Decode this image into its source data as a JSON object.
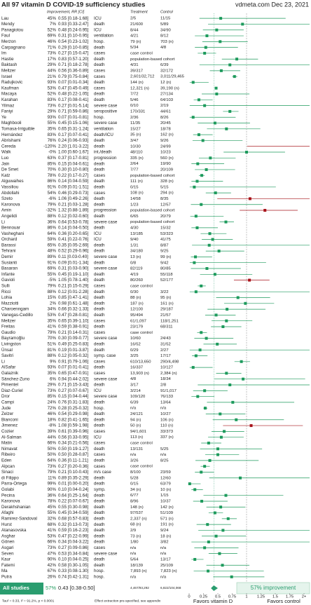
{
  "header": {
    "title": "All 97 vitamin D COVID-19 sufficiency studies",
    "source": "vdmeta.com Dec 23, 2021"
  },
  "columns": {
    "improvement": "Improvement, RR [CI]",
    "treatment": "Treatment",
    "control": "Control"
  },
  "chart_data": {
    "type": "forest",
    "rows": [
      [
        0.55,
        0.18,
        1.68,
        "Lau",
        "45%",
        "0.55 [0.18-1.68]",
        "ICU",
        "2/5",
        "11/15"
      ],
      [
        0.93,
        0.33,
        2.47,
        "Mendy",
        "7%",
        "0.93 [0.33-2.47]",
        "death",
        "21/600",
        "5/89"
      ],
      [
        0.48,
        0.24,
        0.95,
        "Panagiotou",
        "52%",
        "0.48 [0.24-0.95]",
        "ICU",
        "8/44",
        "34/90"
      ],
      [
        0.31,
        0.1,
        0.95,
        "Faul",
        "69%",
        "0.31 [0.10-0.95]",
        "ventilation",
        "4/21",
        "8/12"
      ],
      [
        0.54,
        0.23,
        1.02,
        "Merzon",
        "46%",
        "0.54 [0.23-1.02]",
        "hosp.",
        "79 (n)",
        "703 (n)"
      ],
      [
        0.29,
        0.1,
        0.85,
        "Carpagnano",
        "71%",
        "0.29 [0.10-0.85]",
        "death",
        "5/34",
        "4/8"
      ],
      [
        0.27,
        0.15,
        0.47,
        "Im",
        "73%",
        "0.27 [0.15-0.47]",
        "cases",
        "case control"
      ],
      [
        0.83,
        0.57,
        1.2,
        "Hastie",
        "17%",
        "0.83 [0.57-1.20]",
        "death",
        "population-based cohort"
      ],
      [
        0.71,
        0.18,
        2.78,
        "Baktash",
        "29%",
        "0.71 [0.18-2.78]",
        "death",
        "4/31",
        "6/39"
      ],
      [
        0.56,
        0.36,
        0.89,
        "Meltzer",
        "44%",
        "0.56 [0.36-0.89]",
        "cases",
        "39/317",
        "32/172"
      ],
      [
        0.79,
        0.75,
        0.84,
        "Israel",
        "21%",
        "0.79 [0.75-0.84]",
        "cases",
        "2,601/32,712",
        "3,011/29,465"
      ],
      [
        0.07,
        0.01,
        0.34,
        "Radujkovic",
        "93%",
        "0.07 [0.01-0.34]",
        "death",
        "144 (n)",
        "12 (n)"
      ],
      [
        0.47,
        0.45,
        0.49,
        "Kaufman",
        "53%",
        "0.47 [0.45-0.49]",
        "cases",
        "12,321 (n)",
        "39,190 (n)"
      ],
      [
        0.48,
        0.22,
        1.05,
        "Macaya",
        "52%",
        "0.48 [0.22-1.05]",
        "death",
        "7/72",
        "27/134"
      ],
      [
        0.17,
        0.08,
        0.41,
        "Karahan",
        "83%",
        "0.17 [0.08-0.41]",
        "death",
        "5/46",
        "64/103"
      ],
      [
        0.27,
        0.01,
        5.14,
        "Yilmaz",
        "73%",
        "0.27 [0.01-5.14]",
        "severe case",
        "0/10",
        "2/19"
      ],
      [
        0.71,
        0.59,
        0.86,
        "Faniyi",
        "29%",
        "0.71 [0.59-0.86]",
        "seropositive",
        "170/331",
        "44/61"
      ],
      [
        0.07,
        0.01,
        0.81,
        "Ye",
        "93%",
        "0.07 [0.01-0.81]",
        "hosp.",
        "2/36",
        "8/26"
      ],
      [
        0.45,
        0.15,
        1.06,
        "Maghbooli",
        "55%",
        "0.45 [0.15-1.06]",
        "severe case",
        "11/35",
        "20/45"
      ],
      [
        0.65,
        0.31,
        1.24,
        "Tomasa-Irriguible",
        "35%",
        "0.65 [0.31-1.24]",
        "ventilation",
        "15/27",
        "18/78"
      ],
      [
        0.17,
        0.07,
        0.41,
        "Hernández",
        "83%",
        "0.17 [0.07-0.41]",
        "death/ICU",
        "35 (n)",
        "162 (n)"
      ],
      [
        0.24,
        0.06,
        0.93,
        "Abrishami",
        "76%",
        "0.24 [0.06-0.93]",
        "death",
        "3/47",
        "9/26"
      ],
      [
        2.2,
        1.01,
        3.22,
        "Cereda",
        "-120%",
        "2.20 [1.01-3.22]",
        "death",
        "10/30",
        "24/99"
      ],
      [
        1.0,
        0.6,
        1.67,
        "Walk",
        "-0%",
        "1.00 [0.60-1.67]",
        "int./death",
        "48/110",
        "10/23"
      ],
      [
        0.37,
        0.17,
        0.81,
        "Luo",
        "63%",
        "0.37 [0.17-0.81]",
        "progression",
        "335 (n)",
        "560 (n)"
      ],
      [
        0.15,
        0.04,
        0.61,
        "Jain",
        "85%",
        "0.15 [0.04-0.61]",
        "death",
        "2/64",
        "19/90"
      ],
      [
        0.3,
        0.1,
        0.8,
        "De Smet",
        "70%",
        "0.30 [0.10-0.80]",
        "death",
        "7/77",
        "20/109"
      ],
      [
        0.22,
        0.17,
        0.27,
        "Katz",
        "78%",
        "0.22 [0.17-0.27]",
        "cases",
        "population-based cohort"
      ],
      [
        0.14,
        0.04,
        0.59,
        "Alguwaihes",
        "86%",
        "0.14 [0.04-0.59]",
        "death",
        "111 (n)",
        "328 (n)"
      ],
      [
        0.09,
        0.01,
        1.51,
        "Vassiliou",
        "91%",
        "0.09 [0.01-1.51]",
        "death",
        "0/15",
        "5/15"
      ],
      [
        0.46,
        0.29,
        0.73,
        "Abdollahi",
        "54%",
        "0.46 [0.29-0.73]",
        "cases",
        "108 (n)",
        "294 (n)"
      ],
      [
        1.06,
        0.49,
        2.26,
        "Szeto",
        "-6%",
        "1.06 [0.49-2.26]",
        "death",
        "14/58",
        "8/35"
      ],
      [
        0.21,
        0.03,
        1.28,
        "Karonova",
        "79%",
        "0.21 [0.03-1.28]",
        "death",
        "1/23",
        "12/57"
      ],
      [
        1.32,
        0.88,
        1.89,
        "Amin",
        "-32%",
        "1.32 [0.88-1.89]",
        "progression",
        "population-based cohort"
      ],
      [
        0.12,
        0.02,
        0.6,
        "Angelidi",
        "88%",
        "0.12 [0.02-0.60]",
        "death",
        "6/65",
        "20/79"
      ],
      [
        0.64,
        0.53,
        0.78,
        "Li",
        "36%",
        "0.64 [0.53-0.78]",
        "severe case",
        "population-based cohort"
      ],
      [
        0.14,
        0.04,
        0.5,
        "Bennouar",
        "86%",
        "0.14 [0.04-0.50]",
        "death",
        "4/30",
        "15/32"
      ],
      [
        0.36,
        0.2,
        0.65,
        "Vasheghani",
        "64%",
        "0.36 [0.20-0.65]",
        "ICU",
        "13/185",
        "53/323"
      ],
      [
        0.41,
        0.22,
        0.76,
        "Orchard",
        "59%",
        "0.41 [0.22-0.76]",
        "ICU",
        "9/40",
        "41/75"
      ],
      [
        0.35,
        0.05,
        2.69,
        "Barassi",
        "65%",
        "0.35 [0.05-2.69]",
        "death",
        "1/31",
        "8/87"
      ],
      [
        0.52,
        0.29,
        0.96,
        "Tehrani",
        "48%",
        "0.52 [0.29-0.96]",
        "death",
        "34/180",
        "9/25"
      ],
      [
        0.11,
        0.03,
        0.4,
        "Demir",
        "89%",
        "0.11 [0.03-0.40]",
        "severe case",
        "13 (n)",
        "99 (n)"
      ],
      [
        0.09,
        0.01,
        1.34,
        "Susianti",
        "91%",
        "0.09 [0.01-1.34]",
        "death",
        "0/8",
        "9/42"
      ],
      [
        0.31,
        0.03,
        0.9,
        "Basaran",
        "69%",
        "0.31 [0.03-0.90]",
        "severe case",
        "82/119",
        "80/85"
      ],
      [
        0.45,
        0.19,
        1.1,
        "Infante",
        "55%",
        "0.45 [0.19-1.10]",
        "death",
        "4/19",
        "55/118"
      ],
      [
        1.05,
        0.78,
        1.4,
        "Gavioli",
        "-5%",
        "1.05 [0.78-1.40]",
        "death",
        "80/260",
        "52/177"
      ],
      [
        0.21,
        0.15,
        0.29,
        "Sulli",
        "79%",
        "0.21 [0.15-0.29]",
        "cases",
        "case control"
      ],
      [
        0.12,
        0.01,
        2.28,
        "Ricci",
        "88%",
        "0.12 [0.01-2.28]",
        "death",
        "0/30",
        "3/22"
      ],
      [
        0.85,
        0.47,
        1.41,
        "Lohia",
        "15%",
        "0.85 [0.47-1.41]",
        "death",
        "88 (n)",
        "95 (n)"
      ],
      [
        0.98,
        0.61,
        1.48,
        "Mazziotti",
        "2%",
        "0.98 [0.61-1.48]",
        "death",
        "187 (n)",
        "161 (n)"
      ],
      [
        0.66,
        0.32,
        1.33,
        "Charoenngam",
        "34%",
        "0.66 [0.32-1.33]",
        "death",
        "12/100",
        "29/187"
      ],
      [
        0.47,
        0.28,
        0.81,
        "Vanegas-Cedillo",
        "53%",
        "0.47 [0.28-0.81]",
        "death",
        "95/494",
        "21/57"
      ],
      [
        0.65,
        0.39,
        1.1,
        "Meltzer",
        "35%",
        "0.65 [0.39-1.10]",
        "cases",
        "61/1,097",
        "118/1,251"
      ],
      [
        0.59,
        0.38,
        0.91,
        "Freitas",
        "41%",
        "0.59 [0.38-0.91]",
        "death",
        "23/179",
        "68/311"
      ],
      [
        0.21,
        0.14,
        0.31,
        "Gaudio",
        "79%",
        "0.21 [0.14-0.31]",
        "cases",
        "case control"
      ],
      [
        0.3,
        0.09,
        0.77,
        "Bayramoğlu",
        "70%",
        "0.30 [0.09-0.77]",
        "severe case",
        "10/60",
        "24/43"
      ],
      [
        0.49,
        0.25,
        0.83,
        "Livingston",
        "51%",
        "0.49 [0.25-0.83]",
        "death",
        "16/52",
        "31/52"
      ],
      [
        0.19,
        0.01,
        3.87,
        "Ünsal",
        "81%",
        "0.19 [0.01-3.87]",
        "death",
        "0/29",
        "2/27"
      ],
      [
        0.12,
        0.05,
        0.32,
        "Savitri",
        "88%",
        "0.12 [0.05-0.32]",
        "symp. case",
        "3/25",
        "17/17"
      ],
      [
        0.91,
        0.79,
        1.06,
        "Li",
        "9%",
        "0.91 [0.79-1.06]",
        "cases",
        "610/13,650",
        "290/4,498"
      ],
      [
        0.07,
        0.01,
        0.41,
        "AlSafar",
        "93%",
        "0.07 [0.01-0.41]",
        "death",
        "16/337",
        "10/127"
      ],
      [
        0.65,
        0.47,
        0.91,
        "Galaznik",
        "35%",
        "0.65 [0.47-0.91]",
        "cases",
        "13,903 (n)",
        "2,384 (n)"
      ],
      [
        0.94,
        0.44,
        2.02,
        "Sánchez-Zuno",
        "6%",
        "0.94 [0.44-2.02]",
        "severe case",
        "4/8",
        "18/34"
      ],
      [
        0.71,
        0.15,
        3.43,
        "Pimentel",
        "29%",
        "0.71 [0.15-3.43]",
        "death",
        "3/17",
        "2/8"
      ],
      [
        0.27,
        0.07,
        0.67,
        "Diaz-Curiel",
        "73%",
        "0.27 [0.07-0.67]",
        "ICU",
        "3/214",
        "91/1,017"
      ],
      [
        0.15,
        0.04,
        0.44,
        "Dror",
        "85%",
        "0.15 [0.04-0.44]",
        "severe case",
        "109/120",
        "76/133"
      ],
      [
        0.76,
        0.31,
        1.83,
        "Campi",
        "24%",
        "0.76 [0.31-1.83]",
        "death",
        "6/39",
        "13/64"
      ],
      [
        0.28,
        0.25,
        0.32,
        "Jude",
        "72%",
        "0.28 [0.25-0.32]",
        "hosp.",
        "n/a",
        "n/a"
      ],
      [
        0.54,
        0.29,
        0.98,
        "Zelzer",
        "46%",
        "0.54 [0.29-0.98]",
        "death",
        "24/121",
        "10/27"
      ],
      [
        0.82,
        0.41,
        1.65,
        "Bianconi",
        "18%",
        "0.82 [0.41-1.65]",
        "death",
        "94 (n)",
        "106 (n)"
      ],
      [
        1.08,
        0.59,
        1.98,
        "Jimenez",
        "-8%",
        "1.08 [0.59-1.98]",
        "death",
        "50 (n)",
        "110 (n)"
      ],
      [
        0.61,
        0.39,
        0.96,
        "Cozier",
        "39%",
        "0.61 [0.39-0.96]",
        "cases",
        "94/1,601",
        "33/373"
      ],
      [
        0.56,
        0.33,
        0.95,
        "Al-Salman",
        "44%",
        "0.56 [0.33-0.95]",
        "ICU",
        "113 (n)",
        "337 (n)"
      ],
      [
        0.34,
        0.21,
        0.56,
        "Matin",
        "66%",
        "0.34 [0.21-0.56]",
        "cases",
        "case control"
      ],
      [
        0.5,
        0.19,
        1.27,
        "Nimavat",
        "50%",
        "0.50 [0.19-1.27]",
        "death",
        "13/131",
        "5/25"
      ],
      [
        0.5,
        0.28,
        0.87,
        "Ribeiro",
        "50%",
        "0.50 [0.28-0.87]",
        "cases",
        "n/a",
        "n/a"
      ],
      [
        0.36,
        0.11,
        1.21,
        "Eden",
        "64%",
        "0.36 [0.11-1.21]",
        "death",
        "3/26",
        "8/25"
      ],
      [
        0.27,
        0.2,
        0.36,
        "Alpcan",
        "73%",
        "0.27 [0.20-0.36]",
        "cases",
        "case control"
      ],
      [
        0.21,
        0.1,
        0.43,
        "Sinaci",
        "79%",
        "0.21 [0.10-0.43]",
        "m/s case",
        "8/100",
        "23/59"
      ],
      [
        0.89,
        0.35,
        2.29,
        "di Filippo",
        "11%",
        "0.89 [0.35-2.29]",
        "death",
        "5/28",
        "12/60"
      ],
      [
        0.01,
        0.0,
        0.2,
        "Parra-Ortega",
        "99%",
        "0.01 [0.00-0.20]",
        "death",
        "0/15",
        "63/79"
      ],
      [
        0.1,
        0.04,
        0.24,
        "Golabi",
        "90%",
        "0.10 [0.04-0.24]",
        "symp.",
        "34 (n)",
        "10 (n)"
      ],
      [
        0.64,
        0.25,
        1.64,
        "Pecina",
        "36%",
        "0.64 [0.25-1.64]",
        "death",
        "6/77",
        "1/15"
      ],
      [
        0.22,
        0.07,
        0.67,
        "Karonova",
        "78%",
        "0.22 [0.07-0.67]",
        "death",
        "8/96",
        "10/37"
      ],
      [
        0.55,
        0.3,
        0.98,
        "Derakhshanian",
        "45%",
        "0.55 [0.30-0.98]",
        "death",
        "148 (n)",
        "142 (n)"
      ],
      [
        0.45,
        0.34,
        0.59,
        "Afaghi",
        "55%",
        "0.45 [0.34-0.59]",
        "death",
        "97/537",
        "51/109"
      ],
      [
        0.68,
        0.57,
        0.83,
        "Ramirez-Sandoval",
        "32%",
        "0.68 [0.57-0.83]",
        "death",
        "2,337 (n)",
        "571 (n)"
      ],
      [
        0.32,
        0.13,
        0.73,
        "Hurst",
        "68%",
        "0.32 [0.13-0.73]",
        "death",
        "68 (n)",
        "191 (n)"
      ],
      [
        0.59,
        0.16,
        2.23,
        "Atanasovska",
        "41%",
        "0.59 [0.16-2.23]",
        "death",
        "2/9",
        "9/24"
      ],
      [
        0.47,
        0.22,
        0.99,
        "Asghar",
        "53%",
        "0.47 [0.22-0.99]",
        "death",
        "73 (n)",
        "18 (n)"
      ],
      [
        0.34,
        0.04,
        3.22,
        "Gönen",
        "66%",
        "0.34 [0.04-3.22]",
        "death",
        "1/80",
        "3/82"
      ],
      [
        0.27,
        0.09,
        0.86,
        "Asgari",
        "73%",
        "0.27 [0.09-0.86]",
        "cases",
        "n/a",
        "n/a"
      ],
      [
        0.53,
        0.34,
        0.84,
        "Seven",
        "47%",
        "0.53 [0.34-0.84]",
        "severe case",
        "n/a",
        "n/a"
      ],
      [
        0.1,
        0.04,
        0.25,
        "Kaur",
        "90%",
        "0.10 [0.04-0.25]",
        "death",
        "5/64",
        "13/17"
      ],
      [
        0.58,
        0.3,
        1.05,
        "Fatemi",
        "42%",
        "0.58 [0.30-1.05]",
        "death",
        "18/139",
        "25/109"
      ],
      [
        0.33,
        0.08,
        1.3,
        "Ma",
        "67%",
        "0.33 [0.08-1.30]",
        "hosp.",
        "7,893 (n)",
        "7,823 (n)"
      ],
      [
        0.74,
        0.42,
        1.31,
        "Putra",
        "26%",
        "0.74 [0.42-1.31]",
        "hosp.",
        "n/a",
        "n/a"
      ]
    ],
    "summary": {
      "label": "All studies",
      "improvement": "57%",
      "rr_label": "0.43 [0.38-0.50]",
      "treatment": "4,467/93,292",
      "control": "6,822/104,068",
      "rr": 0.43,
      "ci": [
        0.38,
        0.5
      ],
      "result": "57% improvement"
    },
    "xlim": [
      0,
      2
    ],
    "xticks": [
      0,
      0.25,
      0.5,
      0.75,
      1,
      1.25,
      1.5,
      1.75,
      {
        "value": 2,
        "label": "2+"
      }
    ],
    "reference": 1,
    "colors": {
      "favor": "#1d9a5c",
      "against": "#a8141b",
      "summary": "#2a9d6f"
    }
  },
  "footer": {
    "stats": "Tau² = 0.33, I² = 91.2%, p < 0.0001",
    "note": "Effect extraction pre-specified, see appendix",
    "favors_left": "Favors vitamin D",
    "favors_right": "Favors control"
  }
}
